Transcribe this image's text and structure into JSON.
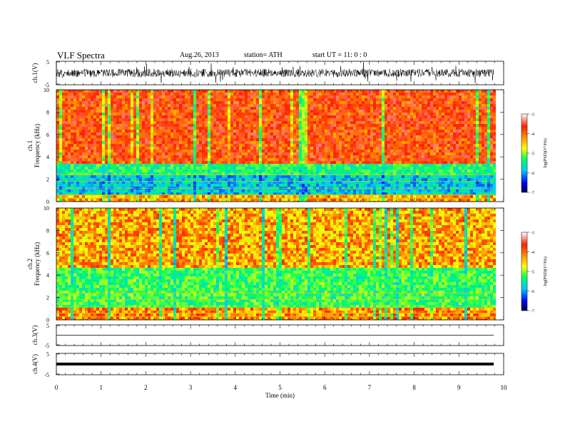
{
  "header": {
    "title": "VLF  Spectra",
    "date": "Aug.26, 2013",
    "station": "station= ATH",
    "start": "start  UT =    11: 0  : 0"
  },
  "chart_data": [
    {
      "type": "line",
      "panel": "ch1-waveform",
      "ylabel": "ch.1(V)",
      "yticks": [
        "5",
        "-5"
      ],
      "ylim": [
        -5,
        5
      ],
      "xlim": [
        0,
        9.8
      ]
    },
    {
      "type": "heatmap",
      "panel": "ch1-spectrogram",
      "ylabel": "ch.1\nFrequency  (kHz)",
      "ylabel_lines": [
        "ch.1",
        "Frequency  (kHz)"
      ],
      "yticks": [
        "0",
        "2",
        "4",
        "6",
        "8",
        "10"
      ],
      "ylim": [
        0,
        10
      ],
      "xlim": [
        0,
        9.8
      ],
      "dominant_bands_khz": [
        {
          "from": 0,
          "to": 0.6,
          "level": -4.3
        },
        {
          "from": 0.6,
          "to": 2.4,
          "level": -5.8
        },
        {
          "from": 2.4,
          "to": 3.6,
          "level": -5.3
        },
        {
          "from": 3.6,
          "to": 10,
          "level": -3.9
        }
      ]
    },
    {
      "type": "heatmap",
      "panel": "ch2-spectrogram",
      "ylabel": "ch.2\nFrequency  (kHz)",
      "ylabel_lines": [
        "ch.2",
        "Frequency  (kHz)"
      ],
      "yticks": [
        "0",
        "2",
        "4",
        "6",
        "8",
        "10"
      ],
      "ylim": [
        0,
        10
      ],
      "xlim": [
        0,
        9.8
      ],
      "dominant_bands_khz": [
        {
          "from": 0,
          "to": 1.2,
          "level": -4.2
        },
        {
          "from": 1.2,
          "to": 4.8,
          "level": -5.2
        },
        {
          "from": 4.8,
          "to": 10,
          "level": -4.3
        }
      ]
    },
    {
      "type": "line",
      "panel": "ch3-waveform",
      "ylabel": "ch.3(V)",
      "yticks": [
        "5",
        "-5"
      ],
      "ylim": [
        -5,
        5
      ],
      "xlim": [
        0,
        9.8
      ]
    },
    {
      "type": "line",
      "panel": "ch4-waveform",
      "ylabel": "ch.4(V)",
      "yticks": [
        "5",
        "-5"
      ],
      "ylim": [
        -5,
        5
      ],
      "xlim": [
        0,
        9.8
      ]
    }
  ],
  "colorbars": [
    {
      "label": "log(PSD)(V²/Hz)",
      "ticks": [
        "-3",
        "-4",
        "-5",
        "-6",
        "-7"
      ],
      "range": [
        -7,
        -3
      ]
    },
    {
      "label": "log(PSD)(V²/Hz)",
      "ticks": [
        "-3",
        "-4",
        "-5",
        "-6",
        "-7"
      ],
      "range": [
        -7,
        -3
      ]
    }
  ],
  "xaxis": {
    "label": "Time  (min)",
    "ticks": [
      "0",
      "1",
      "2",
      "3",
      "4",
      "5",
      "6",
      "7",
      "8",
      "9",
      "10"
    ],
    "range": [
      0,
      10
    ]
  },
  "colors": {
    "lowest": "#000050",
    "low": "#0000ff",
    "mid_low": "#00c8ff",
    "mid": "#00ff60",
    "mid_high": "#ffff00",
    "high": "#ff2000",
    "highest": "#ffffff"
  }
}
